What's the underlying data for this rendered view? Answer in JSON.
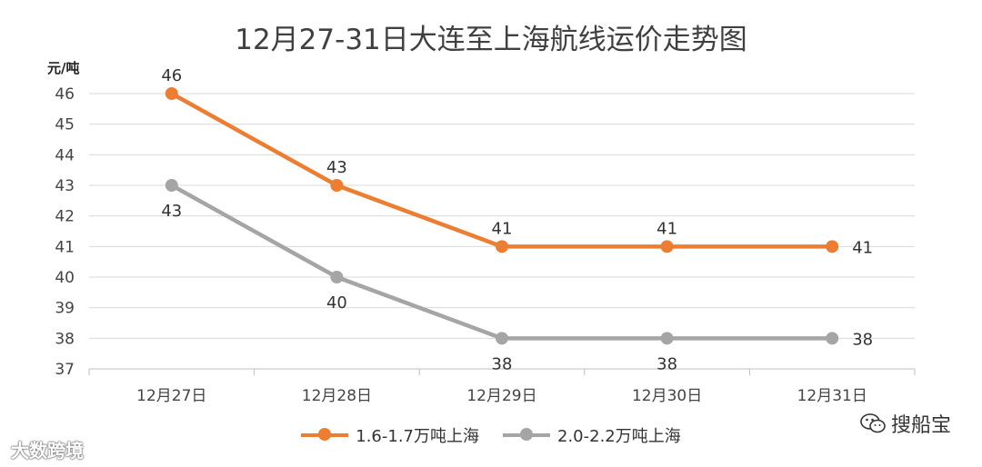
{
  "chart_data": {
    "type": "line",
    "title": "12月27-31日大连至上海航线运价走势图",
    "ylabel": "元/吨",
    "xlabel": "",
    "categories": [
      "12月27日",
      "12月28日",
      "12月29日",
      "12月30日",
      "12月31日"
    ],
    "y_ticks": [
      "37",
      "38",
      "39",
      "40",
      "41",
      "42",
      "43",
      "44",
      "45",
      "46"
    ],
    "ylim": [
      37,
      46
    ],
    "grid": true,
    "legend_position": "bottom",
    "series": [
      {
        "name": "1.6-1.7万吨上海",
        "values": [
          46,
          43,
          41,
          41,
          41
        ],
        "color": "#ED7D31",
        "labels": [
          "46",
          "43",
          "41",
          "41",
          "41"
        ]
      },
      {
        "name": "2.0-2.2万吨上海",
        "values": [
          43,
          40,
          38,
          38,
          38
        ],
        "color": "#A5A5A5",
        "labels": [
          "43",
          "40",
          "38",
          "38",
          "38"
        ]
      }
    ]
  },
  "watermark_left": "大数跨境",
  "watermark_right": "搜船宝",
  "watermark_right_icon": "wechat-icon"
}
